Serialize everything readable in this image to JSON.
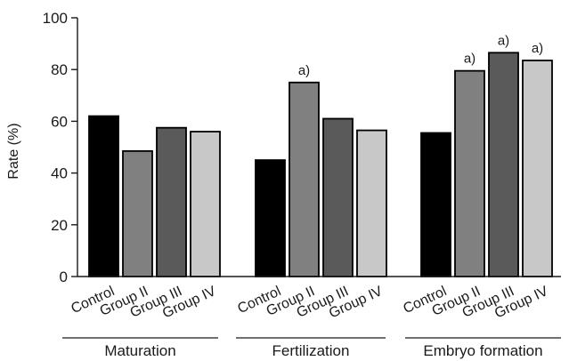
{
  "chart_data": {
    "type": "bar",
    "ylabel": "Rate (%)",
    "ylim": [
      0,
      100
    ],
    "yticks": [
      0,
      20,
      40,
      60,
      80,
      100
    ],
    "grid": false,
    "groups": [
      {
        "label": "Maturation",
        "bars": [
          {
            "category": "Control",
            "value": 62,
            "color": "#000000",
            "annotation": ""
          },
          {
            "category": "Group II",
            "value": 48.5,
            "color": "#808080",
            "annotation": ""
          },
          {
            "category": "Group III",
            "value": 57.5,
            "color": "#5a5a5a",
            "annotation": ""
          },
          {
            "category": "Group IV",
            "value": 56,
            "color": "#c8c8c8",
            "annotation": ""
          }
        ]
      },
      {
        "label": "Fertilization",
        "bars": [
          {
            "category": "Control",
            "value": 45,
            "color": "#000000",
            "annotation": ""
          },
          {
            "category": "Group II",
            "value": 75,
            "color": "#808080",
            "annotation": "a)"
          },
          {
            "category": "Group III",
            "value": 61,
            "color": "#5a5a5a",
            "annotation": ""
          },
          {
            "category": "Group IV",
            "value": 56.5,
            "color": "#c8c8c8",
            "annotation": ""
          }
        ]
      },
      {
        "label": "Embryo formation",
        "bars": [
          {
            "category": "Control",
            "value": 55.5,
            "color": "#000000",
            "annotation": ""
          },
          {
            "category": "Group II",
            "value": 79.5,
            "color": "#808080",
            "annotation": "a)"
          },
          {
            "category": "Group III",
            "value": 86.5,
            "color": "#5a5a5a",
            "annotation": "a)"
          },
          {
            "category": "Group IV",
            "value": 83.5,
            "color": "#c8c8c8",
            "annotation": "a)"
          }
        ]
      }
    ]
  }
}
